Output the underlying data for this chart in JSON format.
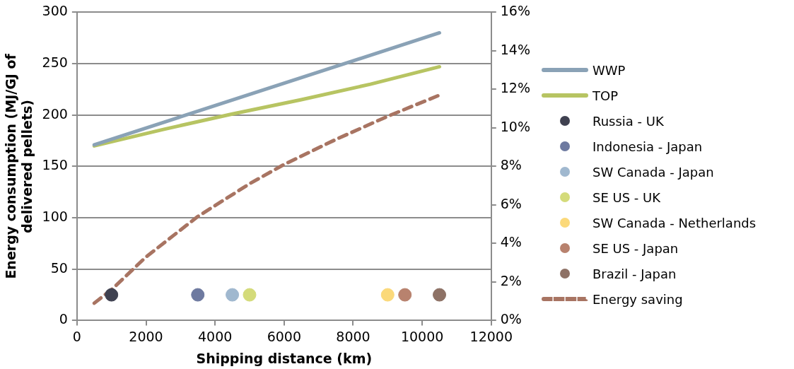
{
  "chart_data": {
    "type": "line",
    "xlabel": "Shipping distance (km)",
    "ylabel": "Energy consumption (MJ/GJ of delivered pellets)",
    "xlim": [
      0,
      12000
    ],
    "xticks": [
      0,
      2000,
      4000,
      6000,
      8000,
      10000,
      12000
    ],
    "ylim": [
      0,
      300
    ],
    "yticks": [
      0,
      50,
      100,
      150,
      200,
      250,
      300
    ],
    "y2lim": [
      0,
      16
    ],
    "y2ticks": [
      {
        "value": 0,
        "label": "0%"
      },
      {
        "value": 2,
        "label": "2%"
      },
      {
        "value": 4,
        "label": "4%"
      },
      {
        "value": 6,
        "label": "6%"
      },
      {
        "value": 8,
        "label": "8%"
      },
      {
        "value": 10,
        "label": "10%"
      },
      {
        "value": 12,
        "label": "12%"
      },
      {
        "value": 14,
        "label": "14%"
      },
      {
        "value": 16,
        "label": "16%"
      }
    ],
    "grid": "y",
    "legend": "right",
    "series": [
      {
        "name": "WWP",
        "type": "line",
        "color": "#8aa2b6",
        "x": [
          500,
          10500
        ],
        "values": [
          171,
          280
        ],
        "marker": "none",
        "line_style": "solid"
      },
      {
        "name": "TOP",
        "type": "line",
        "color": "#b7c462",
        "x": [
          500,
          2500,
          4500,
          6500,
          8500,
          10500
        ],
        "values": [
          170,
          186,
          201,
          215,
          230,
          247
        ],
        "marker": "none",
        "line_style": "solid"
      },
      {
        "name": "Russia - UK",
        "type": "scatter",
        "color": "#3f4150",
        "x": [
          1000
        ],
        "values": [
          25
        ],
        "marker": "circle"
      },
      {
        "name": "Indonesia - Japan",
        "type": "scatter",
        "color": "#6e7aa0",
        "x": [
          3500
        ],
        "values": [
          25
        ],
        "marker": "circle"
      },
      {
        "name": "SW Canada - Japan",
        "type": "scatter",
        "color": "#a0b8cf",
        "x": [
          4500
        ],
        "values": [
          25
        ],
        "marker": "circle"
      },
      {
        "name": "SE US - UK",
        "type": "scatter",
        "color": "#d4db7a",
        "x": [
          5000
        ],
        "values": [
          25
        ],
        "marker": "circle"
      },
      {
        "name": "SW Canada - Netherlands",
        "type": "scatter",
        "color": "#fbd97a",
        "x": [
          9000
        ],
        "values": [
          25
        ],
        "marker": "circle"
      },
      {
        "name": "SE US - Japan",
        "type": "scatter",
        "color": "#b8826e",
        "x": [
          9500
        ],
        "values": [
          25
        ],
        "marker": "circle"
      },
      {
        "name": "Brazil - Japan",
        "type": "scatter",
        "color": "#8e7266",
        "x": [
          10500
        ],
        "values": [
          25
        ],
        "marker": "circle"
      },
      {
        "name": "Energy saving",
        "type": "line",
        "axis": "y2",
        "color": "#a87462",
        "x": [
          500,
          1000,
          2000,
          3500,
          5000,
          6000,
          7500,
          9000,
          10500
        ],
        "values": [
          0.9,
          1.6,
          3.3,
          5.4,
          7.1,
          8.1,
          9.4,
          10.6,
          11.7
        ],
        "marker": "none",
        "line_style": "dashed"
      }
    ]
  }
}
